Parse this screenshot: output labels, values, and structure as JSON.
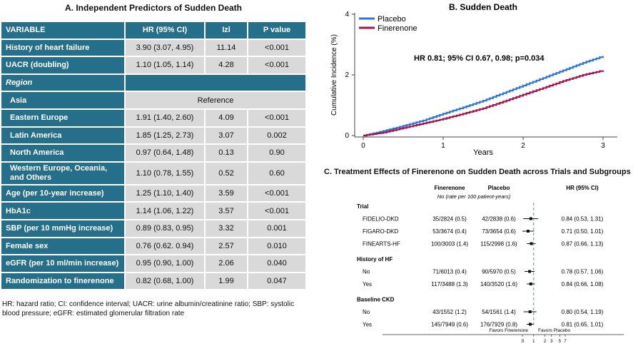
{
  "panel_a": {
    "title": "A. Independent Predictors of Sudden Death",
    "headers": [
      "VARIABLE",
      "HR (95% CI)",
      "Izl",
      "P value"
    ],
    "rows": [
      {
        "variable": "History of heart failure",
        "hr": "3.90 (3.07, 4.95)",
        "z": "11.14",
        "p": "<0.001"
      },
      {
        "variable": "UACR (doubling)",
        "hr": "1.10 (1.05, 1.14)",
        "z": "4.28",
        "p": "<0.001"
      },
      {
        "variable": "Asia",
        "hr": "Reference",
        "z": "",
        "p": ""
      },
      {
        "variable": "Eastern Europe",
        "hr": "1.91 (1.40, 2.60)",
        "z": "4.09",
        "p": "<0.001"
      },
      {
        "variable": "Latin America",
        "hr": "1.85 (1.25, 2.73)",
        "z": "3.07",
        "p": "0.002"
      },
      {
        "variable": "North America",
        "hr": "0.97 (0.64, 1.48)",
        "z": "0.13",
        "p": "0.90"
      },
      {
        "variable": "Western Europe, Oceania, and Others",
        "hr": "1.10 (0.78, 1.55)",
        "z": "0.52",
        "p": "0.60"
      },
      {
        "variable": "Age (per 10-year increase)",
        "hr": "1.25 (1.10, 1.40)",
        "z": "3.59",
        "p": "<0.001"
      },
      {
        "variable": "HbA1c",
        "hr": "1.14 (1.06, 1.22)",
        "z": "3.57",
        "p": "<0.001"
      },
      {
        "variable": "SBP (per 10 mmHg increase)",
        "hr": "0.89 (0.83, 0.95)",
        "z": "3.32",
        "p": "0.001"
      },
      {
        "variable": "Female sex",
        "hr": "0.76 (0.62. 0.94)",
        "z": "2.57",
        "p": "0.010"
      },
      {
        "variable": "eGFR (per 10 ml/min increase)",
        "hr": "0.95 (0.90, 1.00)",
        "z": "2.06",
        "p": "0.040"
      },
      {
        "variable": "Randomization to finerenone",
        "hr": "0.82 (0.68, 1.00)",
        "z": "1.99",
        "p": "0.047"
      }
    ],
    "region_label": "Region",
    "footnote": "HR: hazard ratio; CI: confidence interval; UACR: urine albumin/creatinine ratio; SBP: systolic blood pressure; eGFR: estimated glomerular filtration rate"
  },
  "chart_data": [
    {
      "type": "line",
      "title": "B. Sudden Death",
      "xlabel": "Years",
      "ylabel": "Cumulative Incidence (%)",
      "xlim": [
        0,
        3
      ],
      "ylim": [
        0,
        4
      ],
      "xticks": [
        "0",
        "1",
        "2",
        "3"
      ],
      "yticks": [
        "0",
        "2",
        "4"
      ],
      "annotation": "HR 0.81; 95% CI 0.67, 0.98; p=0.034",
      "series": [
        {
          "name": "Placebo",
          "color": "#2b74d8",
          "x": [
            0,
            0.25,
            0.5,
            0.75,
            1.0,
            1.25,
            1.5,
            1.75,
            2.0,
            2.25,
            2.5,
            2.75,
            3.0
          ],
          "y": [
            0,
            0.15,
            0.32,
            0.5,
            0.72,
            0.93,
            1.15,
            1.4,
            1.65,
            1.9,
            2.15,
            2.4,
            2.62
          ]
        },
        {
          "name": "Finerenone",
          "color": "#a8124a",
          "x": [
            0,
            0.25,
            0.5,
            0.75,
            1.0,
            1.25,
            1.5,
            1.75,
            2.0,
            2.25,
            2.5,
            2.75,
            3.0
          ],
          "y": [
            0,
            0.1,
            0.25,
            0.4,
            0.55,
            0.72,
            0.9,
            1.12,
            1.35,
            1.57,
            1.8,
            2.0,
            2.15
          ]
        }
      ]
    },
    {
      "type": "forest",
      "title": "C. Treatment Effects of Finerenone on Sudden Death across Trials and Subgroups",
      "col_finerenone": "Finerenone",
      "col_placebo": "Placebo",
      "col_hr": "HR (95% CI)",
      "rate_note": "No (rate per 100 patient-years)",
      "xlabel_left": "Favors Finerenone",
      "xlabel_right": "Favors Placebo",
      "xticks": [
        ".5",
        "1",
        "2",
        "3",
        "5",
        "7"
      ],
      "xlim": [
        0.5,
        7
      ],
      "groups": [
        {
          "label": "Trial",
          "rows": [
            {
              "label": "FIDELIO-DKD",
              "finerenone": "35/2824 (0.5)",
              "placebo": "42/2838 (0.6)",
              "hr_text": "0.84 (0.53, 1.31)",
              "hr": 0.84,
              "lo": 0.53,
              "hi": 1.31
            },
            {
              "label": "FIGARO-DKD",
              "finerenone": "53/3674 (0.4)",
              "placebo": "73/3654 (0.6)",
              "hr_text": "0.71 (0.50, 1.01)",
              "hr": 0.71,
              "lo": 0.5,
              "hi": 1.01
            },
            {
              "label": "FINEARTS-HF",
              "finerenone": "100/3003 (1.4)",
              "placebo": "115/2998 (1.6)",
              "hr_text": "0.87 (0.66, 1.13)",
              "hr": 0.87,
              "lo": 0.66,
              "hi": 1.13
            }
          ]
        },
        {
          "label": "History of HF",
          "rows": [
            {
              "label": "No",
              "finerenone": "71/6013 (0.4)",
              "placebo": "90/5970 (0.5)",
              "hr_text": "0.78 (0.57, 1.06)",
              "hr": 0.78,
              "lo": 0.57,
              "hi": 1.06
            },
            {
              "label": "Yes",
              "finerenone": "117/3488 (1.3)",
              "placebo": "140/3520 (1.6)",
              "hr_text": "0.84 (0.66, 1.08)",
              "hr": 0.84,
              "lo": 0.66,
              "hi": 1.08
            }
          ]
        },
        {
          "label": "Baseline CKD",
          "rows": [
            {
              "label": "No",
              "finerenone": "43/1552 (1.2)",
              "placebo": "54/1561 (1.4)",
              "hr_text": "0.80 (0.54, 1.19)",
              "hr": 0.8,
              "lo": 0.54,
              "hi": 1.19
            },
            {
              "label": "Yes",
              "finerenone": "145/7949 (0.6)",
              "placebo": "176/7929 (0.8)",
              "hr_text": "0.81 (0.65, 1.01)",
              "hr": 0.81,
              "lo": 0.65,
              "hi": 1.01
            }
          ]
        }
      ]
    }
  ]
}
